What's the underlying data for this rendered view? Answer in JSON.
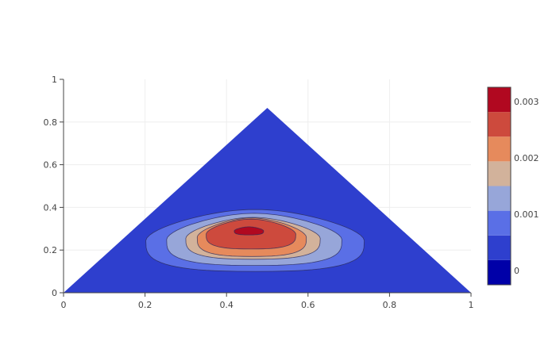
{
  "chart_data": {
    "type": "contour",
    "title": "",
    "xlabel": "",
    "ylabel": "",
    "xlim": [
      0,
      1
    ],
    "ylim": [
      0,
      1
    ],
    "x_ticks": [
      "0",
      "0.2",
      "0.4",
      "0.6",
      "0.8",
      "1"
    ],
    "y_ticks": [
      "0",
      "0.2",
      "0.4",
      "0.6",
      "0.8",
      "1"
    ],
    "grid": true,
    "domain": {
      "shape": "triangle",
      "vertices": [
        [
          0.0,
          0.0
        ],
        [
          1.0,
          0.0
        ],
        [
          0.5,
          0.866
        ]
      ]
    },
    "peak": {
      "x": 0.455,
      "y": 0.29,
      "value": 0.0034
    },
    "contour_levels": [
      {
        "level": 0.0,
        "center": [
          0.476,
          0.24
        ],
        "rx": 0.32,
        "ry": 0.185,
        "color": "#2e3fce"
      },
      {
        "level": 0.0005,
        "center": [
          0.47,
          0.245
        ],
        "rx": 0.268,
        "ry": 0.145,
        "color": "#5a6fe6"
      },
      {
        "level": 0.001,
        "center": [
          0.468,
          0.25
        ],
        "rx": 0.215,
        "ry": 0.122,
        "color": "#97a6d9"
      },
      {
        "level": 0.0015,
        "center": [
          0.465,
          0.255
        ],
        "rx": 0.165,
        "ry": 0.098,
        "color": "#d2b29b"
      },
      {
        "level": 0.002,
        "center": [
          0.462,
          0.26
        ],
        "rx": 0.134,
        "ry": 0.09,
        "color": "#e68a5c"
      },
      {
        "level": 0.0025,
        "center": [
          0.46,
          0.275
        ],
        "rx": 0.11,
        "ry": 0.07,
        "color": "#cd4a3d"
      },
      {
        "level": 0.003,
        "center": [
          0.455,
          0.29
        ],
        "rx": 0.036,
        "ry": 0.019,
        "color": "#b10820"
      }
    ],
    "colorbar": {
      "colors": [
        "#0000a8",
        "#2e3fce",
        "#5a6fe6",
        "#97a6d9",
        "#d2b29b",
        "#e68a5c",
        "#cd4a3d",
        "#b10820"
      ],
      "range": [
        -0.00025,
        0.00325
      ],
      "ticks": [
        {
          "label": "0",
          "value": 0
        },
        {
          "label": "0.001",
          "value": 0.001
        },
        {
          "label": "0.002",
          "value": 0.002
        },
        {
          "label": "0.003",
          "value": 0.003
        }
      ]
    }
  }
}
